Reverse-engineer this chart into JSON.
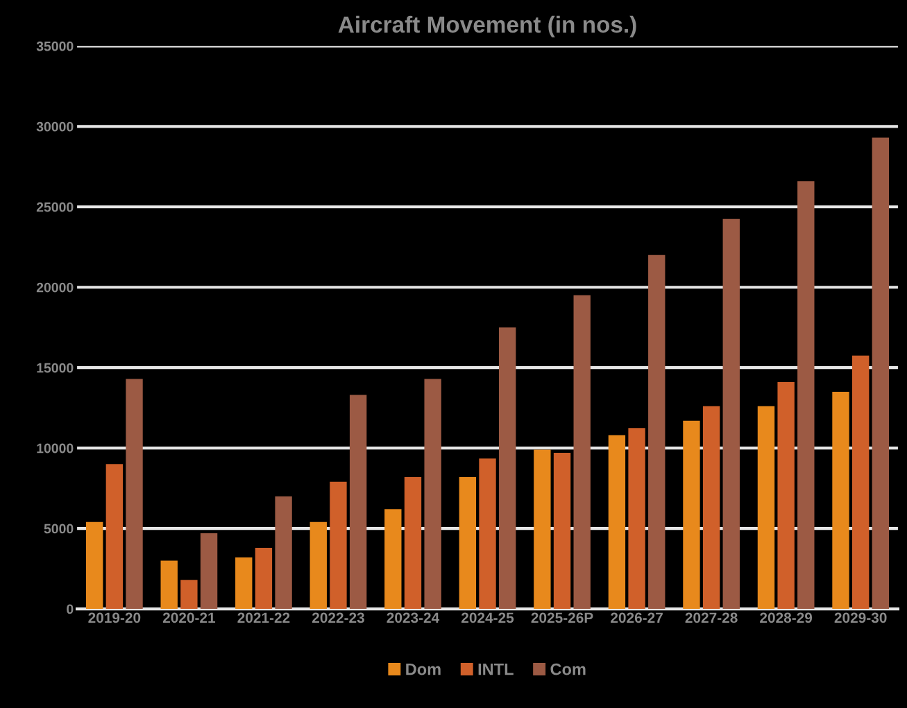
{
  "chart_data": {
    "type": "bar",
    "title": "Aircraft Movement (in nos.)",
    "categories": [
      "2019-20",
      "2020-21",
      "2021-22",
      "2022-23",
      "2023-24",
      "2024-25",
      "2025-26P",
      "2026-27",
      "2027-28",
      "2028-29",
      "2029-30"
    ],
    "series": [
      {
        "name": "Dom",
        "color": "#e8891c",
        "values": [
          5400,
          3000,
          3200,
          5400,
          6200,
          8200,
          9900,
          10800,
          11700,
          12600,
          13500
        ]
      },
      {
        "name": "INTL",
        "color": "#d0602a",
        "values": [
          9000,
          1800,
          3800,
          7900,
          8200,
          9350,
          9700,
          11250,
          12600,
          14100,
          15750
        ]
      },
      {
        "name": "Com",
        "color": "#9c5a44",
        "values": [
          14300,
          4700,
          7000,
          13300,
          14300,
          17500,
          19500,
          22000,
          24250,
          26600,
          29300
        ]
      }
    ],
    "ylim": [
      0,
      35000
    ],
    "yticks": [
      0,
      5000,
      10000,
      15000,
      20000,
      25000,
      30000,
      35000
    ],
    "grid": "y",
    "legend": "bottom"
  }
}
